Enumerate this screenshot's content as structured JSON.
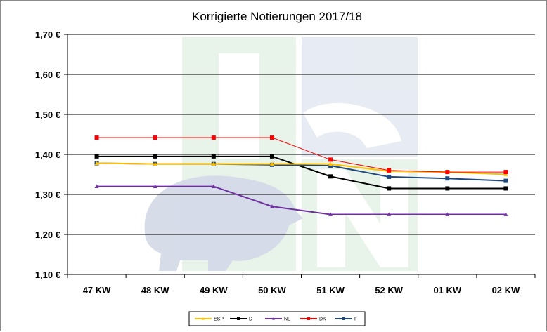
{
  "chart_data": {
    "type": "line",
    "title": "Korrigierte Notierungen 2017/18",
    "categories": [
      "47 KW",
      "48 KW",
      "49 KW",
      "50 KW",
      "51 KW",
      "52 KW",
      "01 KW",
      "02 KW"
    ],
    "y_ticks": [
      "1,10 €",
      "1,20 €",
      "1,30 €",
      "1,40 €",
      "1,50 €",
      "1,60 €",
      "1,70 €"
    ],
    "ylim": [
      1.1,
      1.7
    ],
    "grid": true,
    "legend_position": "bottom",
    "series": [
      {
        "name": "ESP",
        "color": "#FFC000",
        "marker": "triangle",
        "values": [
          1.378,
          1.376,
          1.376,
          1.376,
          1.376,
          1.358,
          1.356,
          1.35
        ]
      },
      {
        "name": "D",
        "color": "#000000",
        "marker": "square",
        "values": [
          1.395,
          1.395,
          1.395,
          1.395,
          1.345,
          1.315,
          1.315,
          1.315
        ]
      },
      {
        "name": "NL",
        "color": "#7030A0",
        "marker": "triangle",
        "values": [
          1.32,
          1.32,
          1.32,
          1.27,
          1.25,
          1.25,
          1.25,
          1.25
        ]
      },
      {
        "name": "DK",
        "color": "#FF0000",
        "marker": "square",
        "values": [
          1.442,
          1.442,
          1.442,
          1.442,
          1.387,
          1.36,
          1.356,
          1.356
        ]
      },
      {
        "name": "F",
        "color": "#1F497D",
        "marker": "square",
        "values": [
          1.378,
          1.376,
          1.376,
          1.374,
          1.372,
          1.344,
          1.34,
          1.334
        ]
      }
    ]
  },
  "watermark": {
    "logo": "ISN-logo"
  }
}
